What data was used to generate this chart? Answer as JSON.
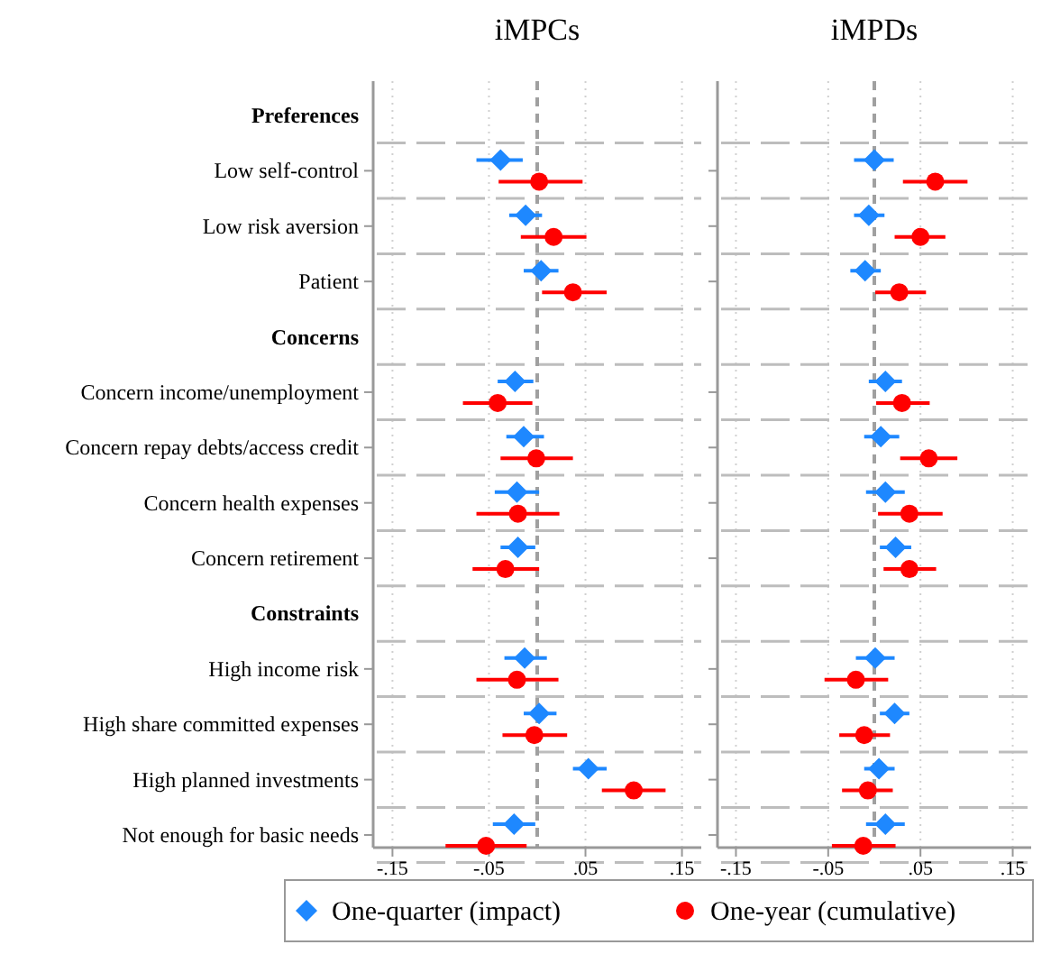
{
  "chart_data": [
    {
      "type": "scatter",
      "title": "iMPCs",
      "orientation": "horizontal",
      "categories": [
        "Preferences",
        "Low self-control",
        "Low risk aversion",
        "Patient",
        "Concerns",
        "Concern income/unemployment",
        "Concern repay debts/access credit",
        "Concern health expenses",
        "Concern retirement",
        "Constraints",
        "High income risk",
        "High share committed expenses",
        "High planned investments",
        "Not enough for basic needs"
      ],
      "xlim": [
        -0.17,
        0.17
      ],
      "xticks": [
        {
          "value": -0.15,
          "label": "-.15"
        },
        {
          "value": -0.05,
          "label": "-.05"
        },
        {
          "value": 0.05,
          "label": ".05"
        },
        {
          "value": 0.15,
          "label": ".15"
        }
      ],
      "grid": true,
      "legend": "bottom",
      "ref_lines": [
        {
          "axis": "x",
          "value": 0,
          "color": "#a0a0a0",
          "line_style": "dashed"
        }
      ],
      "series": [
        {
          "name": "One-quarter (impact)",
          "color": "#1e88ff",
          "marker": "diamond",
          "values": [
            null,
            -0.038,
            -0.012,
            0.004,
            null,
            -0.023,
            -0.014,
            -0.021,
            -0.02,
            null,
            -0.013,
            0.002,
            0.053,
            -0.024
          ],
          "errors": [
            null,
            [
              -0.063,
              -0.015
            ],
            [
              -0.029,
              0.005
            ],
            [
              -0.014,
              0.022
            ],
            null,
            [
              -0.041,
              -0.004
            ],
            [
              -0.032,
              0.007
            ],
            [
              -0.044,
              0.002
            ],
            [
              -0.038,
              -0.002
            ],
            null,
            [
              -0.034,
              0.01
            ],
            [
              -0.014,
              0.02
            ],
            [
              0.037,
              0.072
            ],
            [
              -0.046,
              -0.002
            ]
          ]
        },
        {
          "name": "One-year (cumulative)",
          "color": "#ff0000",
          "marker": "circle",
          "values": [
            null,
            0.002,
            0.017,
            0.037,
            null,
            -0.041,
            -0.001,
            -0.02,
            -0.033,
            null,
            -0.021,
            -0.003,
            0.1,
            -0.053
          ],
          "errors": [
            null,
            [
              -0.04,
              0.047
            ],
            [
              -0.017,
              0.051
            ],
            [
              0.005,
              0.072
            ],
            null,
            [
              -0.077,
              -0.005
            ],
            [
              -0.038,
              0.037
            ],
            [
              -0.063,
              0.023
            ],
            [
              -0.067,
              0.002
            ],
            null,
            [
              -0.063,
              0.022
            ],
            [
              -0.036,
              0.031
            ],
            [
              0.067,
              0.133
            ],
            [
              -0.095,
              -0.011
            ]
          ]
        }
      ]
    },
    {
      "type": "scatter",
      "title": "iMPDs",
      "orientation": "horizontal",
      "tick_labels": "x",
      "categories": [
        null,
        null,
        null,
        null,
        null,
        null,
        null,
        null,
        null,
        null,
        null,
        null,
        null,
        null
      ],
      "xlim": [
        -0.17,
        0.17
      ],
      "xticks": [
        {
          "value": -0.15,
          "label": "-.15"
        },
        {
          "value": -0.05,
          "label": "-.05"
        },
        {
          "value": 0.05,
          "label": ".05"
        },
        {
          "value": 0.15,
          "label": ".15"
        }
      ],
      "grid": true,
      "ref_lines": [
        {
          "axis": "x",
          "value": 0,
          "color": "#a0a0a0",
          "line_style": "dashed"
        }
      ],
      "series": [
        {
          "color": "#1e88ff",
          "marker": "diamond",
          "values": [
            null,
            0.0,
            -0.006,
            -0.01,
            null,
            0.012,
            0.007,
            0.012,
            0.023,
            null,
            0.001,
            0.022,
            0.005,
            0.012
          ],
          "errors": [
            null,
            [
              -0.022,
              0.021
            ],
            [
              -0.022,
              0.011
            ],
            [
              -0.026,
              0.007
            ],
            null,
            [
              -0.006,
              0.03
            ],
            [
              -0.011,
              0.027
            ],
            [
              -0.009,
              0.033
            ],
            [
              0.006,
              0.04
            ],
            null,
            [
              -0.02,
              0.022
            ],
            [
              0.006,
              0.038
            ],
            [
              -0.011,
              0.022
            ],
            [
              -0.009,
              0.033
            ]
          ]
        },
        {
          "color": "#ff0000",
          "marker": "circle",
          "values": [
            null,
            0.066,
            0.05,
            0.027,
            null,
            0.03,
            0.059,
            0.038,
            0.038,
            null,
            -0.02,
            -0.011,
            -0.007,
            -0.012
          ],
          "errors": [
            null,
            [
              0.031,
              0.101
            ],
            [
              0.022,
              0.077
            ],
            [
              0.001,
              0.056
            ],
            null,
            [
              0.002,
              0.06
            ],
            [
              0.028,
              0.09
            ],
            [
              0.004,
              0.074
            ],
            [
              0.01,
              0.067
            ],
            null,
            [
              -0.054,
              0.015
            ],
            [
              -0.038,
              0.017
            ],
            [
              -0.035,
              0.02
            ],
            [
              -0.046,
              0.023
            ]
          ]
        }
      ]
    }
  ]
}
